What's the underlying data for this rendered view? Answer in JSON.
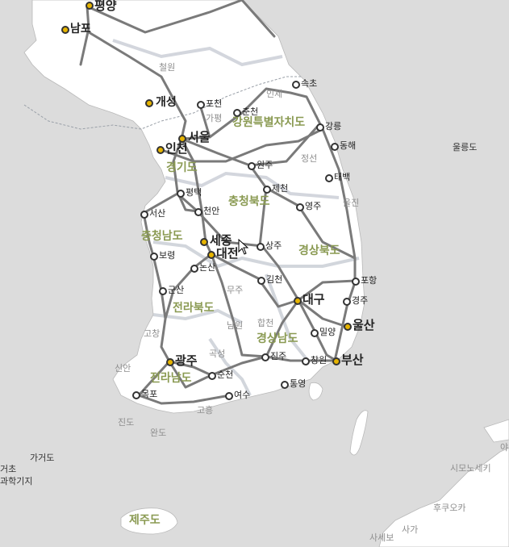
{
  "colors": {
    "sea": "#dcdcdc",
    "land": "#ffffff",
    "road": "#7a7a7a",
    "border_halo": "#c8ccd4",
    "province_label": "#8a9a52",
    "major_city_dot": "#e6b400"
  },
  "cities_major": [
    {
      "id": "pyongyang",
      "name": "평양"
    },
    {
      "id": "seoul",
      "name": "서울"
    },
    {
      "id": "incheon",
      "name": "인천"
    },
    {
      "id": "sejong",
      "name": "세종"
    },
    {
      "id": "daejeon",
      "name": "대전"
    },
    {
      "id": "daegu",
      "name": "대구"
    },
    {
      "id": "ulsan",
      "name": "울산"
    },
    {
      "id": "gwangju",
      "name": "광주"
    },
    {
      "id": "busan",
      "name": "부산"
    },
    {
      "id": "kaesong",
      "name": "개성"
    },
    {
      "id": "nampo",
      "name": "남포"
    }
  ],
  "cities": [
    {
      "id": "pocheon",
      "name": "포천"
    },
    {
      "id": "chuncheon",
      "name": "춘천"
    },
    {
      "id": "sokcho",
      "name": "속초"
    },
    {
      "id": "gangneung",
      "name": "강릉"
    },
    {
      "id": "donghae",
      "name": "동해"
    },
    {
      "id": "taebaek",
      "name": "태백"
    },
    {
      "id": "wonju",
      "name": "원주"
    },
    {
      "id": "jecheon",
      "name": "제천"
    },
    {
      "id": "yeongju",
      "name": "영주"
    },
    {
      "id": "pyeongtaek",
      "name": "평택"
    },
    {
      "id": "cheonan",
      "name": "천안"
    },
    {
      "id": "seosan",
      "name": "서산"
    },
    {
      "id": "boryeong",
      "name": "보령"
    },
    {
      "id": "nonsan",
      "name": "논산"
    },
    {
      "id": "sangju",
      "name": "상주"
    },
    {
      "id": "gimcheon",
      "name": "김천"
    },
    {
      "id": "pohang",
      "name": "포항"
    },
    {
      "id": "gyeongju",
      "name": "경주"
    },
    {
      "id": "gunsan",
      "name": "군산"
    },
    {
      "id": "miryang",
      "name": "밀양"
    },
    {
      "id": "jinju",
      "name": "진주"
    },
    {
      "id": "changwon",
      "name": "창원"
    },
    {
      "id": "tongyeong",
      "name": "통영"
    },
    {
      "id": "suncheon",
      "name": "순천"
    },
    {
      "id": "mokpo",
      "name": "목포"
    },
    {
      "id": "yeosu",
      "name": "여수"
    }
  ],
  "provinces": [
    {
      "id": "gangwon",
      "name": "강원특별자치도"
    },
    {
      "id": "gyeonggi",
      "name": "경기도"
    },
    {
      "id": "chungbuk",
      "name": "충청북도"
    },
    {
      "id": "chungnam",
      "name": "충청남도"
    },
    {
      "id": "gyeongbuk",
      "name": "경상북도"
    },
    {
      "id": "jeonbuk",
      "name": "전라북도"
    },
    {
      "id": "gyeongnam",
      "name": "경상남도"
    },
    {
      "id": "jeonnam",
      "name": "전라남도"
    },
    {
      "id": "jeju",
      "name": "제주도"
    }
  ],
  "counties": [
    {
      "id": "cheorwon",
      "name": "철원"
    },
    {
      "id": "inje",
      "name": "인제"
    },
    {
      "id": "gapyeong",
      "name": "가평"
    },
    {
      "id": "jeongseon",
      "name": "정선"
    },
    {
      "id": "uljin",
      "name": "울진"
    },
    {
      "id": "muju",
      "name": "무주"
    },
    {
      "id": "hapcheon",
      "name": "합천"
    },
    {
      "id": "namwon",
      "name": "남원"
    },
    {
      "id": "gokseong",
      "name": "곡성"
    },
    {
      "id": "gochang",
      "name": "고창"
    },
    {
      "id": "sinan",
      "name": "신안"
    },
    {
      "id": "jindo",
      "name": "진도"
    },
    {
      "id": "wando",
      "name": "완도"
    },
    {
      "id": "goheung",
      "name": "고흥"
    }
  ],
  "foreign": [
    {
      "id": "ulleungdo",
      "name": "울릉도"
    },
    {
      "id": "gageodo",
      "name": "가거도"
    },
    {
      "id": "geocho",
      "name": "거초"
    },
    {
      "id": "gwahakgiji",
      "name": "과학기지"
    }
  ],
  "foreign_jp": [
    {
      "id": "shimonoseki",
      "name": "시모노세키"
    },
    {
      "id": "fukuoka",
      "name": "후쿠오카"
    },
    {
      "id": "saga",
      "name": "사가"
    },
    {
      "id": "sasebo",
      "name": "사세보"
    },
    {
      "id": "ya",
      "name": "야"
    }
  ]
}
